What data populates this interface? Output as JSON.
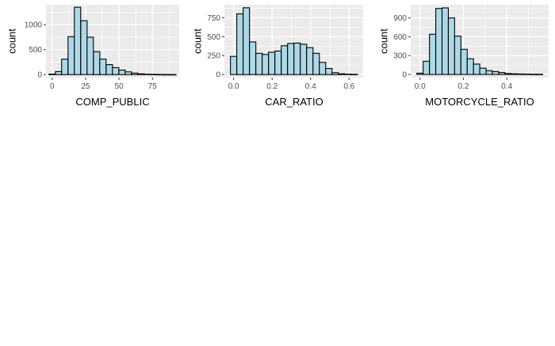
{
  "chart_data": [
    {
      "type": "bar",
      "xlabel": "COMP_PUBLIC",
      "ylabel": "count",
      "bin_width": 4.75,
      "bins": [
        {
          "x0": -2.4,
          "count": 10
        },
        {
          "x0": 2.4,
          "count": 60
        },
        {
          "x0": 7.1,
          "count": 310
        },
        {
          "x0": 11.9,
          "count": 760
        },
        {
          "x0": 16.6,
          "count": 1350
        },
        {
          "x0": 21.4,
          "count": 1080
        },
        {
          "x0": 26.1,
          "count": 750
        },
        {
          "x0": 30.9,
          "count": 460
        },
        {
          "x0": 35.6,
          "count": 310
        },
        {
          "x0": 40.4,
          "count": 200
        },
        {
          "x0": 45.1,
          "count": 140
        },
        {
          "x0": 49.9,
          "count": 90
        },
        {
          "x0": 54.6,
          "count": 55
        },
        {
          "x0": 59.4,
          "count": 30
        },
        {
          "x0": 64.1,
          "count": 15
        },
        {
          "x0": 68.9,
          "count": 8
        },
        {
          "x0": 73.6,
          "count": 5
        },
        {
          "x0": 78.4,
          "count": 3
        },
        {
          "x0": 83.1,
          "count": 2
        },
        {
          "x0": 87.9,
          "count": 1
        }
      ],
      "xlim": [
        -4.6,
        95
      ],
      "ylim": [
        -60,
        1400
      ],
      "xticks": [
        0,
        25,
        50,
        75
      ],
      "xtick_labels": [
        "0",
        "25",
        "50",
        "75"
      ],
      "yticks": [
        0,
        500,
        1000
      ],
      "ytick_labels": [
        "0",
        "500",
        "1000"
      ],
      "colors": {
        "fill": "#add8e6",
        "stroke": "#000000",
        "panel": "#ebebeb",
        "grid": "#ffffff"
      }
    },
    {
      "type": "bar",
      "xlabel": "CAR_RATIO",
      "ylabel": "count",
      "bin_width": 0.033,
      "bins": [
        {
          "x0": -0.0165,
          "count": 240
        },
        {
          "x0": 0.0165,
          "count": 800
        },
        {
          "x0": 0.0495,
          "count": 880
        },
        {
          "x0": 0.0825,
          "count": 430
        },
        {
          "x0": 0.1155,
          "count": 280
        },
        {
          "x0": 0.1485,
          "count": 265
        },
        {
          "x0": 0.1815,
          "count": 295
        },
        {
          "x0": 0.2145,
          "count": 310
        },
        {
          "x0": 0.2475,
          "count": 380
        },
        {
          "x0": 0.2805,
          "count": 410
        },
        {
          "x0": 0.3135,
          "count": 415
        },
        {
          "x0": 0.3465,
          "count": 400
        },
        {
          "x0": 0.3795,
          "count": 355
        },
        {
          "x0": 0.4125,
          "count": 280
        },
        {
          "x0": 0.4455,
          "count": 160
        },
        {
          "x0": 0.4785,
          "count": 80
        },
        {
          "x0": 0.5115,
          "count": 25
        },
        {
          "x0": 0.5445,
          "count": 10
        },
        {
          "x0": 0.5775,
          "count": 5
        },
        {
          "x0": 0.6105,
          "count": 3
        }
      ],
      "xlim": [
        -0.048,
        0.673
      ],
      "ylim": [
        -40,
        920
      ],
      "xticks": [
        0,
        0.2,
        0.4,
        0.6
      ],
      "xtick_labels": [
        "0.0",
        "0.2",
        "0.4",
        "0.6"
      ],
      "yticks": [
        0,
        250,
        500,
        750
      ],
      "ytick_labels": [
        "0",
        "250",
        "500",
        "750"
      ],
      "colors": {
        "fill": "#add8e6",
        "stroke": "#000000",
        "panel": "#ebebeb",
        "grid": "#ffffff"
      }
    },
    {
      "type": "bar",
      "xlabel": "MOTORCYCLE_RATIO",
      "ylabel": "count",
      "bin_width": 0.029,
      "bins": [
        {
          "x0": -0.0145,
          "count": 20
        },
        {
          "x0": 0.0145,
          "count": 210
        },
        {
          "x0": 0.0435,
          "count": 640
        },
        {
          "x0": 0.0725,
          "count": 1050
        },
        {
          "x0": 0.1015,
          "count": 1060
        },
        {
          "x0": 0.1305,
          "count": 900
        },
        {
          "x0": 0.1595,
          "count": 610
        },
        {
          "x0": 0.1885,
          "count": 400
        },
        {
          "x0": 0.2175,
          "count": 250
        },
        {
          "x0": 0.2465,
          "count": 165
        },
        {
          "x0": 0.2755,
          "count": 100
        },
        {
          "x0": 0.3045,
          "count": 60
        },
        {
          "x0": 0.3335,
          "count": 45
        },
        {
          "x0": 0.3625,
          "count": 30
        },
        {
          "x0": 0.3915,
          "count": 15
        },
        {
          "x0": 0.4205,
          "count": 10
        },
        {
          "x0": 0.4495,
          "count": 7
        },
        {
          "x0": 0.4785,
          "count": 5
        },
        {
          "x0": 0.5075,
          "count": 3
        },
        {
          "x0": 0.5365,
          "count": 2
        }
      ],
      "xlim": [
        -0.043,
        0.593
      ],
      "ylim": [
        -50,
        1110
      ],
      "xticks": [
        0,
        0.2,
        0.4
      ],
      "xtick_labels": [
        "0.0",
        "0.2",
        "0.4"
      ],
      "yticks": [
        0,
        300,
        600,
        900
      ],
      "ytick_labels": [
        "0",
        "300",
        "600",
        "900"
      ],
      "colors": {
        "fill": "#add8e6",
        "stroke": "#000000",
        "panel": "#ebebeb",
        "grid": "#ffffff"
      }
    }
  ]
}
